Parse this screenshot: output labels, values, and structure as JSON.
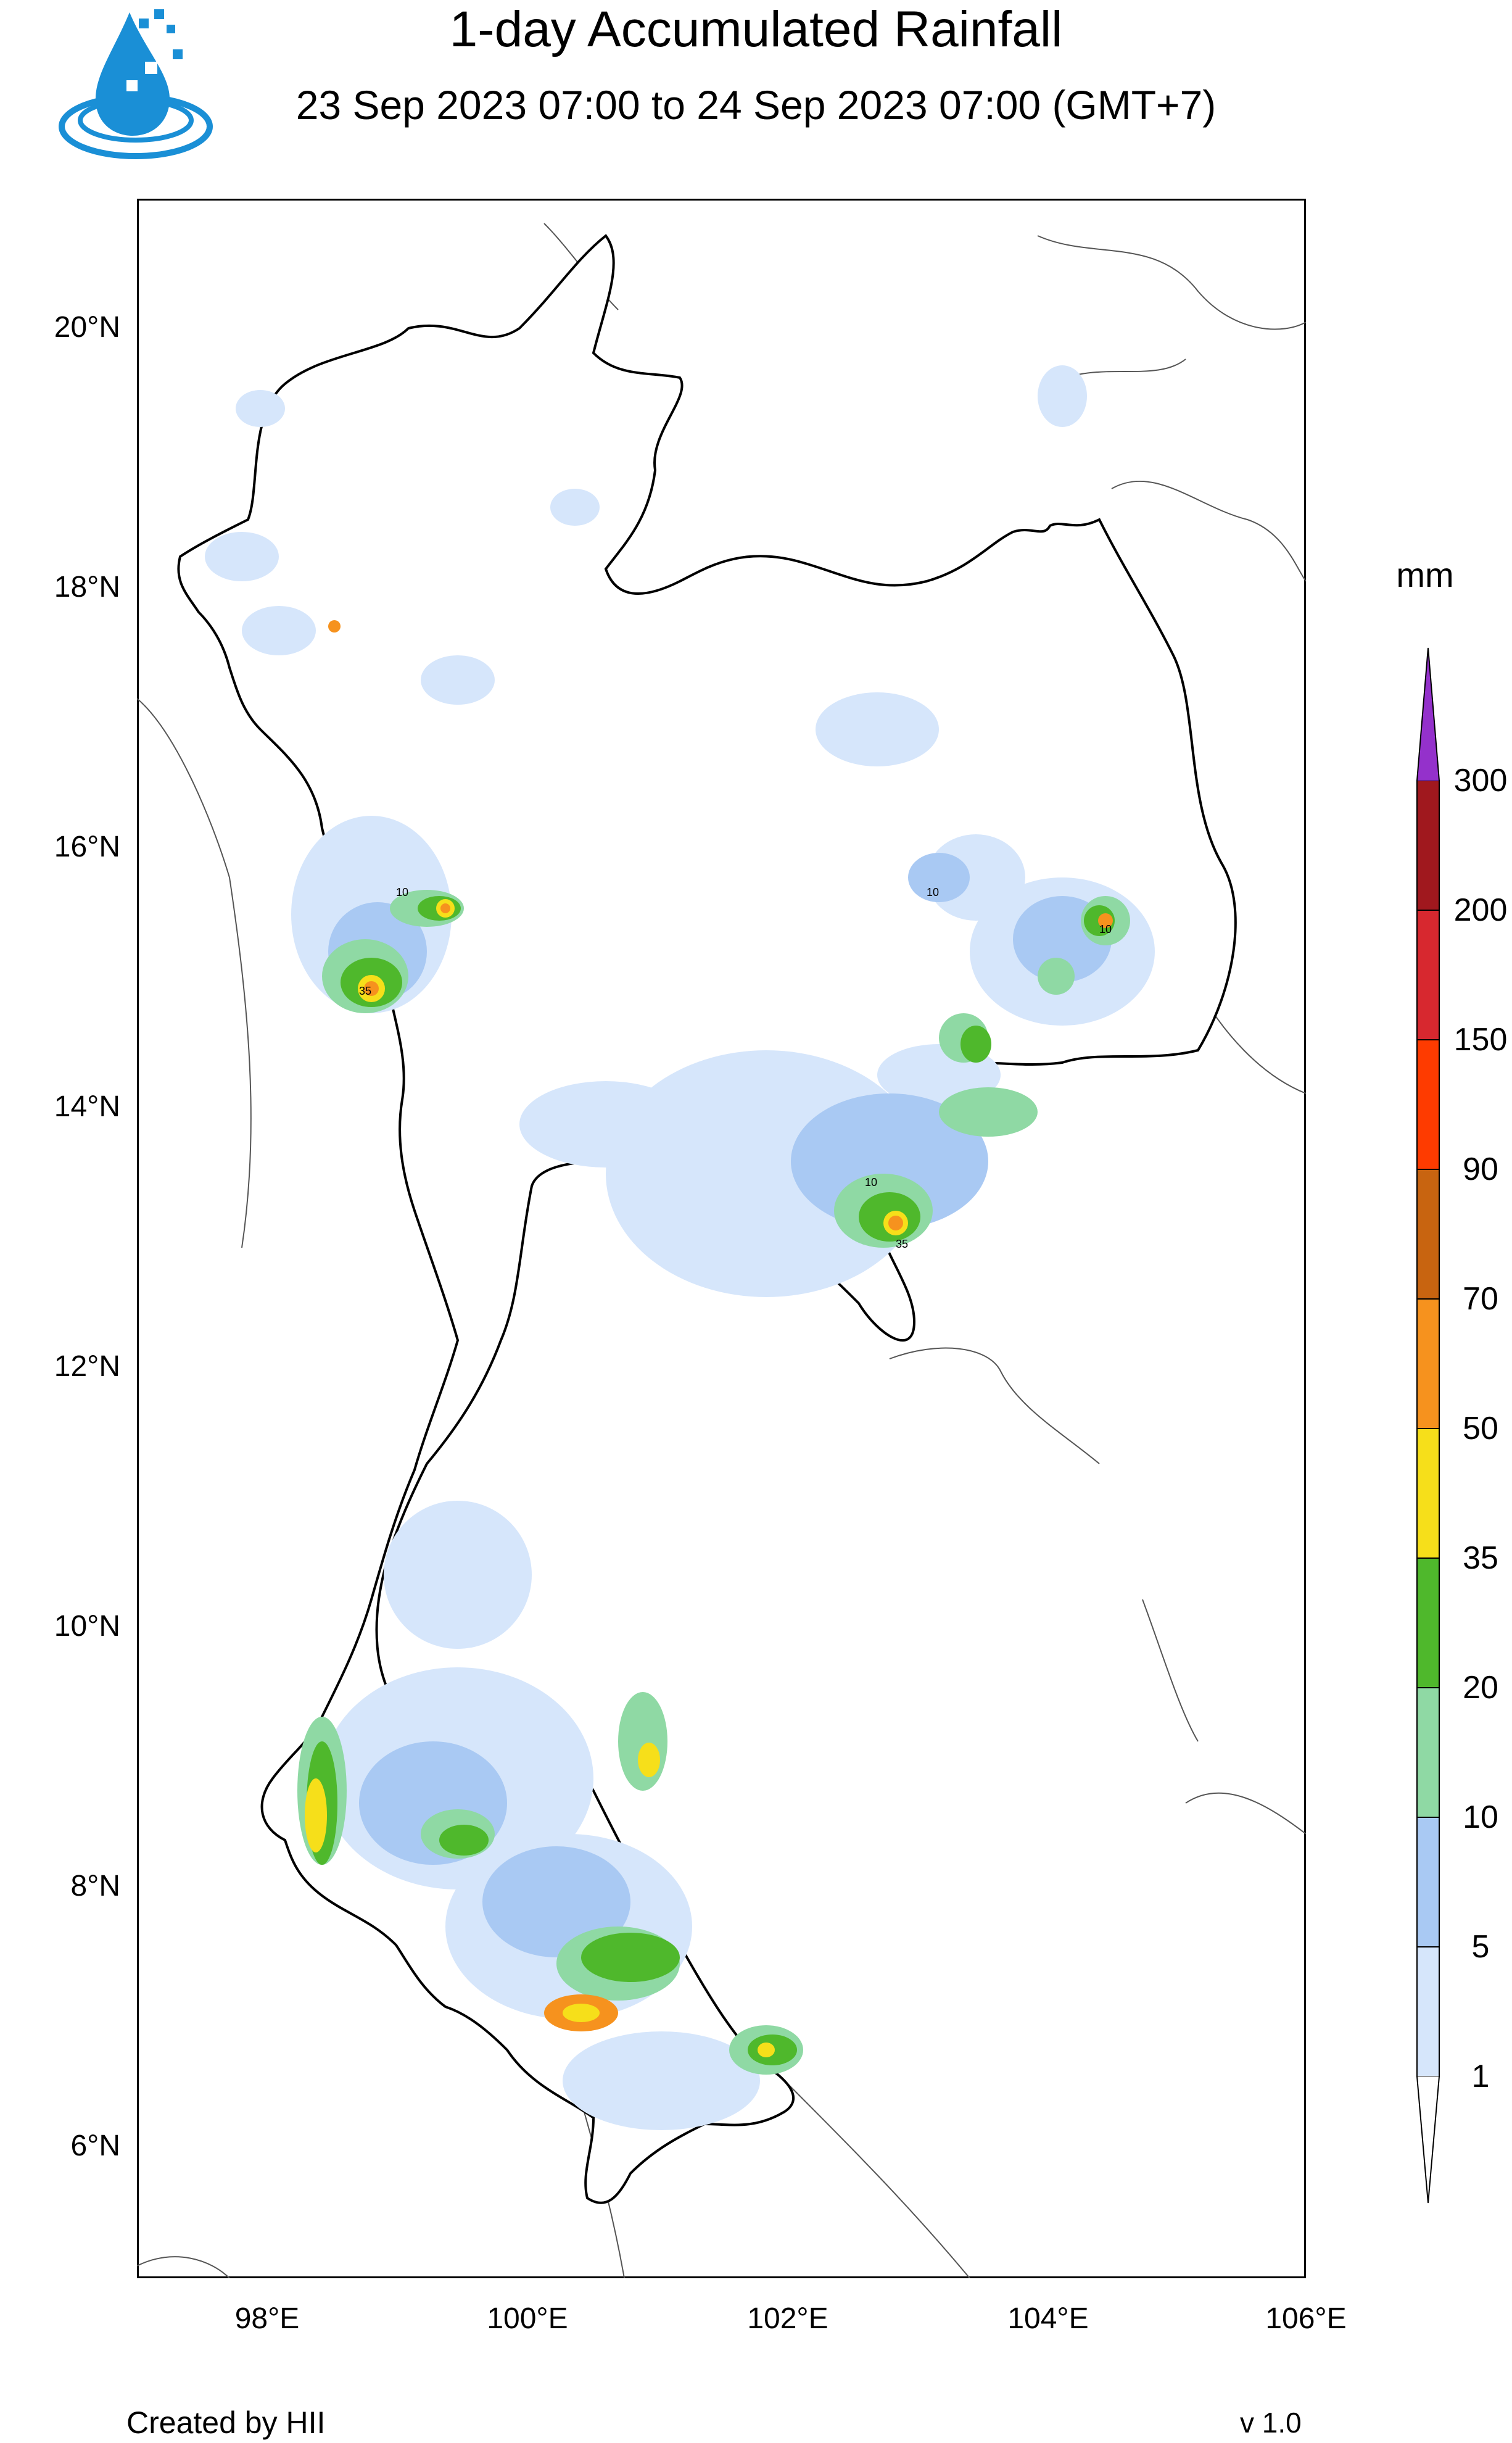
{
  "header": {
    "title": "1-day Accumulated Rainfall",
    "subtitle": "23 Sep 2023 07:00 to 24 Sep 2023 07:00 (GMT+7)"
  },
  "logo": {
    "icon": "water-drop-logo-icon",
    "color": "#1a8fd6"
  },
  "axes": {
    "lat_ticks": [
      "20°N",
      "18°N",
      "16°N",
      "14°N",
      "12°N",
      "10°N",
      "8°N",
      "6°N"
    ],
    "lon_ticks": [
      "98°E",
      "100°E",
      "102°E",
      "104°E",
      "106°E"
    ]
  },
  "legend": {
    "unit": "mm",
    "levels": [
      "1",
      "5",
      "10",
      "20",
      "35",
      "50",
      "70",
      "90",
      "150",
      "200",
      "300"
    ],
    "colors": [
      "#ffffff",
      "#d6e6fb",
      "#a9c9f3",
      "#8fd9a4",
      "#4fb82c",
      "#f6df1a",
      "#f6921e",
      "#c86410",
      "#fe3b00",
      "#d7282f",
      "#a0181e",
      "#9431cb"
    ]
  },
  "contour_labels": [
    "10",
    "35"
  ],
  "footer": {
    "left": "Created by HII",
    "right": "v 1.0"
  }
}
